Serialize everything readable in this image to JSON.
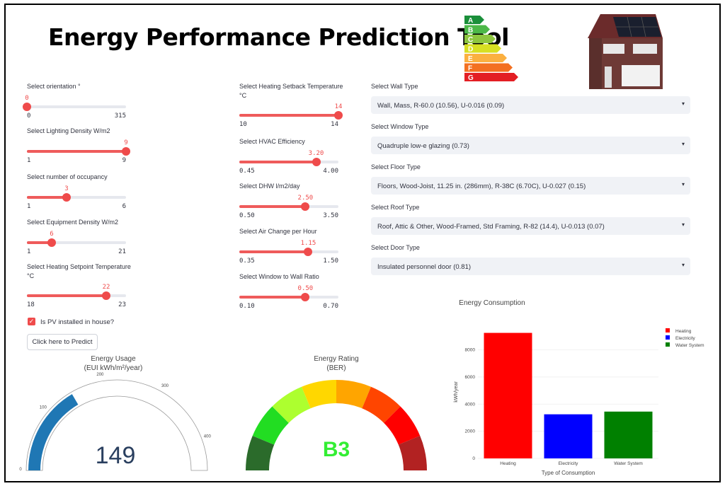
{
  "title": "Energy Performance Prediction Tool",
  "rating_scale": [
    "A",
    "B",
    "C",
    "D",
    "E",
    "F",
    "G"
  ],
  "left_sliders": [
    {
      "label": "Select orientation °",
      "value": "0",
      "min": "0",
      "max": "315",
      "frac": 0.0
    },
    {
      "label": "Select Lighting Density W/m2",
      "value": "9",
      "min": "1",
      "max": "9",
      "frac": 1.0
    },
    {
      "label": "Select number of occupancy",
      "value": "3",
      "min": "1",
      "max": "6",
      "frac": 0.4
    },
    {
      "label": "Select Equipment Density W/m2",
      "value": "6",
      "min": "1",
      "max": "21",
      "frac": 0.25
    },
    {
      "label": "Select Heating Setpoint Temperature",
      "label2": "°C",
      "value": "22",
      "min": "18",
      "max": "23",
      "frac": 0.8
    }
  ],
  "mid_sliders": [
    {
      "label": "Select Heating Setback Temperature",
      "label2": "°C",
      "value": "14",
      "min": "10",
      "max": "14",
      "frac": 1.0
    },
    {
      "label": "Select HVAC Efficiency",
      "value": "3.20",
      "min": "0.45",
      "max": "4.00",
      "frac": 0.775
    },
    {
      "label": "Select DHW l/m2/day",
      "value": "2.50",
      "min": "0.50",
      "max": "3.50",
      "frac": 0.667
    },
    {
      "label": "Select Air Change per Hour",
      "value": "1.15",
      "min": "0.35",
      "max": "1.50",
      "frac": 0.696
    },
    {
      "label": "Select Window to Wall Ratio",
      "value": "0.50",
      "min": "0.10",
      "max": "0.70",
      "frac": 0.667
    }
  ],
  "selects": [
    {
      "label": "Select Wall Type",
      "value": "Wall, Mass, R-60.0 (10.56), U-0.016 (0.09)"
    },
    {
      "label": "Select Window Type",
      "value": "Quadruple low-e glazing (0.73)"
    },
    {
      "label": "Select Floor Type",
      "value": "Floors, Wood-Joist, 11.25 in. (286mm), R-38C (6.70C), U-0.027 (0.15)"
    },
    {
      "label": "Select Roof Type",
      "value": "Roof, Attic & Other, Wood-Framed, Std Framing, R-82 (14.4), U-0.013 (0.07)"
    },
    {
      "label": "Select Door Type",
      "value": "Insulated personnel door (0.81)"
    }
  ],
  "pv_checkbox": {
    "label": "Is PV installed in house?",
    "checked": true
  },
  "predict_button": "Click here to Predict",
  "gauge_usage": {
    "title": "Energy Usage",
    "subtitle": "(EUI kWh/m²/year)",
    "value": "149",
    "value_num": 149,
    "range": [
      0,
      450
    ],
    "ticks": [
      "0",
      "100",
      "200",
      "300",
      "400"
    ],
    "color": "#1f77b4"
  },
  "gauge_rating": {
    "title": "Energy Rating",
    "subtitle": "(BER)",
    "value": "B3",
    "color": "#33ee33"
  },
  "chart_data": {
    "type": "bar",
    "title": "Energy Consumption",
    "xlabel": "Type of Consumption",
    "ylabel": "kWh/year",
    "categories": [
      "Heating",
      "Electricity",
      "Water System"
    ],
    "values": [
      9250,
      3250,
      3450
    ],
    "colors": [
      "#ff0000",
      "#0000ff",
      "#008000"
    ],
    "yticks": [
      "0",
      "2000",
      "4000",
      "6000",
      "8000"
    ],
    "ylim": [
      0,
      9800
    ],
    "legend": [
      "Heating",
      "Electricity",
      "Water System"
    ],
    "legend_position": "top-right"
  }
}
